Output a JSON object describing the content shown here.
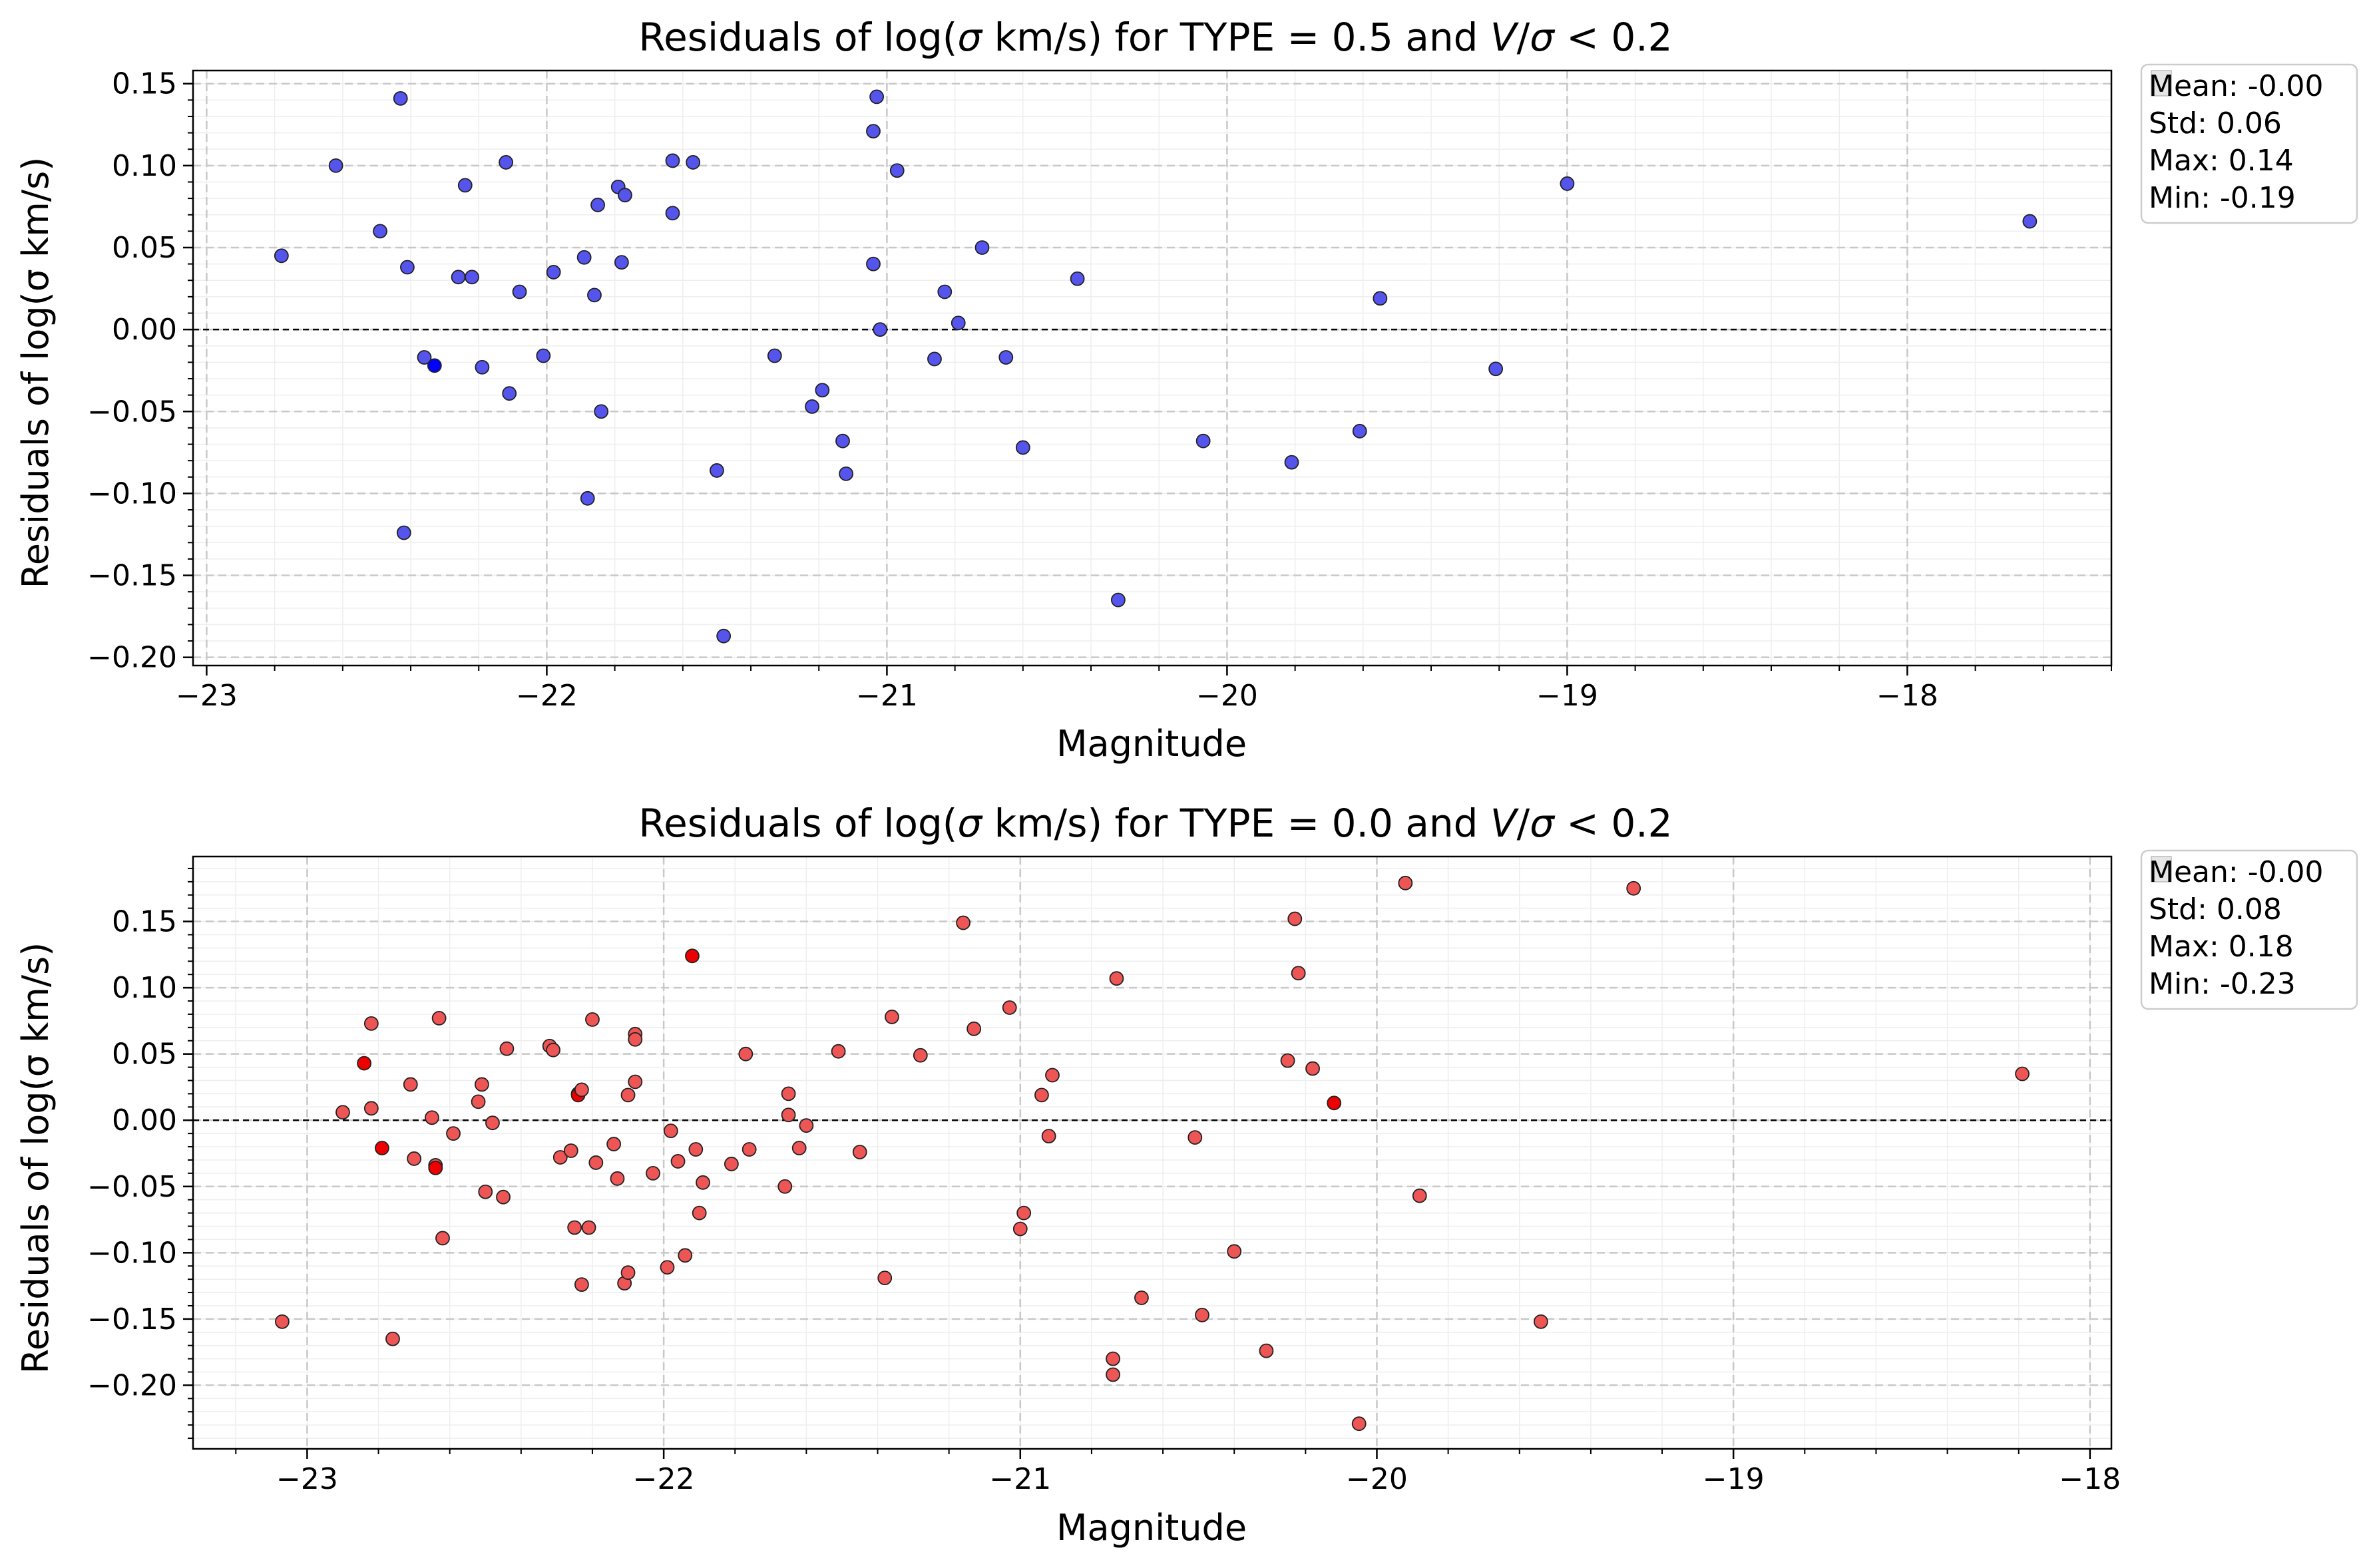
{
  "chart_data": [
    {
      "type": "scatter",
      "title": "Residuals of log(σ km/s) for TYPE = 0.5 and V/σ < 0.2",
      "title_parts": {
        "prefix": "Residuals of log(",
        "sigma": "σ",
        "unit": " km/s) for TYPE = 0.5 and ",
        "v": "V",
        "slash": "/",
        "sigma2": "σ",
        "cond": " < 0.2"
      },
      "xlabel": "Magnitude",
      "ylabel": "Residuals of log(σ km/s)",
      "xlim": [
        -23.04,
        -17.4
      ],
      "ylim": [
        -0.205,
        0.158
      ],
      "xticks": [
        -23,
        -22,
        -21,
        -20,
        -19,
        -18
      ],
      "yticks": [
        -0.2,
        -0.15,
        -0.1,
        -0.05,
        0.0,
        0.05,
        0.1,
        0.15
      ],
      "ytick_labels": [
        "−0.20",
        "−0.15",
        "−0.10",
        "−0.05",
        "0.00",
        "0.05",
        "0.10",
        "0.15"
      ],
      "xtick_labels": [
        "−23",
        "−22",
        "−21",
        "−20",
        "−19",
        "−18"
      ],
      "grid": true,
      "zero_line": true,
      "color": "#5555ee",
      "highlight_color": "#0000ff",
      "stats": [
        "Mean: -0.00",
        "Std: 0.06",
        "Max: 0.14",
        "Min: -0.19"
      ],
      "legend_position": "outside-top-right",
      "points": [
        {
          "x": -22.78,
          "y": 0.045
        },
        {
          "x": -22.62,
          "y": 0.1
        },
        {
          "x": -22.49,
          "y": 0.06
        },
        {
          "x": -22.43,
          "y": 0.141
        },
        {
          "x": -22.42,
          "y": -0.124
        },
        {
          "x": -22.41,
          "y": 0.038
        },
        {
          "x": -22.36,
          "y": -0.017
        },
        {
          "x": -22.33,
          "y": -0.022,
          "h": true
        },
        {
          "x": -22.26,
          "y": 0.032
        },
        {
          "x": -22.24,
          "y": 0.088
        },
        {
          "x": -22.22,
          "y": 0.032
        },
        {
          "x": -22.19,
          "y": -0.023
        },
        {
          "x": -22.12,
          "y": 0.102
        },
        {
          "x": -22.11,
          "y": -0.039
        },
        {
          "x": -22.08,
          "y": 0.023
        },
        {
          "x": -22.01,
          "y": -0.016
        },
        {
          "x": -21.98,
          "y": 0.035
        },
        {
          "x": -21.89,
          "y": 0.044
        },
        {
          "x": -21.88,
          "y": -0.103
        },
        {
          "x": -21.86,
          "y": 0.021
        },
        {
          "x": -21.85,
          "y": 0.076
        },
        {
          "x": -21.84,
          "y": -0.05
        },
        {
          "x": -21.79,
          "y": 0.087
        },
        {
          "x": -21.78,
          "y": 0.041
        },
        {
          "x": -21.77,
          "y": 0.082
        },
        {
          "x": -21.63,
          "y": 0.103
        },
        {
          "x": -21.63,
          "y": 0.071
        },
        {
          "x": -21.57,
          "y": 0.102
        },
        {
          "x": -21.5,
          "y": -0.086
        },
        {
          "x": -21.48,
          "y": -0.187
        },
        {
          "x": -21.33,
          "y": -0.016
        },
        {
          "x": -21.22,
          "y": -0.047
        },
        {
          "x": -21.19,
          "y": -0.037
        },
        {
          "x": -21.13,
          "y": -0.068
        },
        {
          "x": -21.12,
          "y": -0.088
        },
        {
          "x": -21.04,
          "y": 0.121
        },
        {
          "x": -21.04,
          "y": 0.04
        },
        {
          "x": -21.03,
          "y": 0.142
        },
        {
          "x": -21.02,
          "y": 0.0
        },
        {
          "x": -20.97,
          "y": 0.097
        },
        {
          "x": -20.86,
          "y": -0.018
        },
        {
          "x": -20.83,
          "y": 0.023
        },
        {
          "x": -20.79,
          "y": 0.004
        },
        {
          "x": -20.72,
          "y": 0.05
        },
        {
          "x": -20.65,
          "y": -0.017
        },
        {
          "x": -20.6,
          "y": -0.072
        },
        {
          "x": -20.44,
          "y": 0.031
        },
        {
          "x": -20.32,
          "y": -0.165
        },
        {
          "x": -20.07,
          "y": -0.068
        },
        {
          "x": -19.81,
          "y": -0.081
        },
        {
          "x": -19.61,
          "y": -0.062
        },
        {
          "x": -19.55,
          "y": 0.019
        },
        {
          "x": -19.21,
          "y": -0.024
        },
        {
          "x": -19.0,
          "y": 0.089
        },
        {
          "x": -17.64,
          "y": 0.066
        }
      ]
    },
    {
      "type": "scatter",
      "title": "Residuals of log(σ km/s) for TYPE = 0.0 and V/σ < 0.2",
      "title_parts": {
        "prefix": "Residuals of log(",
        "sigma": "σ",
        "unit": " km/s) for TYPE = 0.0 and ",
        "v": "V",
        "slash": "/",
        "sigma2": "σ",
        "cond": " < 0.2"
      },
      "xlabel": "Magnitude",
      "ylabel": "Residuals of log(σ km/s)",
      "xlim": [
        -23.32,
        -17.94
      ],
      "ylim": [
        -0.248,
        0.199
      ],
      "xticks": [
        -23,
        -22,
        -21,
        -20,
        -19,
        -18
      ],
      "yticks": [
        -0.2,
        -0.15,
        -0.1,
        -0.05,
        0.0,
        0.05,
        0.1,
        0.15
      ],
      "ytick_labels": [
        "−0.20",
        "−0.15",
        "−0.10",
        "−0.05",
        "0.00",
        "0.05",
        "0.10",
        "0.15"
      ],
      "xtick_labels": [
        "−23",
        "−22",
        "−21",
        "−20",
        "−19",
        "−18"
      ],
      "grid": true,
      "zero_line": true,
      "color": "#ee5555",
      "highlight_color": "#ee0000",
      "stats": [
        "Mean: -0.00",
        "Std: 0.08",
        "Max: 0.18",
        "Min: -0.23"
      ],
      "legend_position": "outside-top-right",
      "points": [
        {
          "x": -23.07,
          "y": -0.152
        },
        {
          "x": -22.9,
          "y": 0.006
        },
        {
          "x": -22.84,
          "y": 0.043,
          "h": true
        },
        {
          "x": -22.82,
          "y": 0.073
        },
        {
          "x": -22.82,
          "y": 0.009
        },
        {
          "x": -22.79,
          "y": -0.021,
          "h": true
        },
        {
          "x": -22.76,
          "y": -0.165
        },
        {
          "x": -22.71,
          "y": 0.027
        },
        {
          "x": -22.7,
          "y": -0.029
        },
        {
          "x": -22.65,
          "y": 0.002
        },
        {
          "x": -22.64,
          "y": -0.034
        },
        {
          "x": -22.64,
          "y": -0.036,
          "h": true
        },
        {
          "x": -22.63,
          "y": 0.077
        },
        {
          "x": -22.62,
          "y": -0.089
        },
        {
          "x": -22.59,
          "y": -0.01
        },
        {
          "x": -22.52,
          "y": 0.014
        },
        {
          "x": -22.51,
          "y": 0.027
        },
        {
          "x": -22.5,
          "y": -0.054
        },
        {
          "x": -22.48,
          "y": -0.002
        },
        {
          "x": -22.45,
          "y": -0.058
        },
        {
          "x": -22.44,
          "y": 0.054
        },
        {
          "x": -22.32,
          "y": 0.056
        },
        {
          "x": -22.31,
          "y": 0.053
        },
        {
          "x": -22.29,
          "y": -0.028
        },
        {
          "x": -22.26,
          "y": -0.023
        },
        {
          "x": -22.25,
          "y": -0.081
        },
        {
          "x": -22.24,
          "y": 0.02
        },
        {
          "x": -22.24,
          "y": 0.019,
          "h": true
        },
        {
          "x": -22.23,
          "y": -0.124
        },
        {
          "x": -22.23,
          "y": 0.023
        },
        {
          "x": -22.21,
          "y": -0.081
        },
        {
          "x": -22.2,
          "y": 0.076
        },
        {
          "x": -22.19,
          "y": -0.032
        },
        {
          "x": -22.14,
          "y": -0.018
        },
        {
          "x": -22.13,
          "y": -0.044
        },
        {
          "x": -22.11,
          "y": -0.123
        },
        {
          "x": -22.1,
          "y": -0.115
        },
        {
          "x": -22.1,
          "y": 0.019
        },
        {
          "x": -22.08,
          "y": 0.029
        },
        {
          "x": -22.08,
          "y": 0.065
        },
        {
          "x": -22.08,
          "y": 0.061
        },
        {
          "x": -22.03,
          "y": -0.04
        },
        {
          "x": -21.99,
          "y": -0.111
        },
        {
          "x": -21.98,
          "y": -0.008
        },
        {
          "x": -21.96,
          "y": -0.031
        },
        {
          "x": -21.94,
          "y": -0.102
        },
        {
          "x": -21.92,
          "y": 0.124,
          "h": true
        },
        {
          "x": -21.91,
          "y": -0.022
        },
        {
          "x": -21.9,
          "y": -0.07
        },
        {
          "x": -21.89,
          "y": -0.047
        },
        {
          "x": -21.81,
          "y": -0.033
        },
        {
          "x": -21.77,
          "y": 0.05
        },
        {
          "x": -21.76,
          "y": -0.022
        },
        {
          "x": -21.66,
          "y": -0.05
        },
        {
          "x": -21.65,
          "y": 0.02
        },
        {
          "x": -21.65,
          "y": 0.004
        },
        {
          "x": -21.62,
          "y": -0.021
        },
        {
          "x": -21.6,
          "y": -0.004
        },
        {
          "x": -21.51,
          "y": 0.052
        },
        {
          "x": -21.45,
          "y": -0.024
        },
        {
          "x": -21.38,
          "y": -0.119
        },
        {
          "x": -21.36,
          "y": 0.078
        },
        {
          "x": -21.28,
          "y": 0.049
        },
        {
          "x": -21.16,
          "y": 0.149
        },
        {
          "x": -21.13,
          "y": 0.069
        },
        {
          "x": -21.03,
          "y": 0.085
        },
        {
          "x": -21.0,
          "y": -0.082
        },
        {
          "x": -20.99,
          "y": -0.07
        },
        {
          "x": -20.94,
          "y": 0.019
        },
        {
          "x": -20.92,
          "y": -0.012
        },
        {
          "x": -20.91,
          "y": 0.034
        },
        {
          "x": -20.74,
          "y": -0.18
        },
        {
          "x": -20.74,
          "y": -0.192
        },
        {
          "x": -20.73,
          "y": 0.107
        },
        {
          "x": -20.66,
          "y": -0.134
        },
        {
          "x": -20.51,
          "y": -0.013
        },
        {
          "x": -20.49,
          "y": -0.147
        },
        {
          "x": -20.4,
          "y": -0.099
        },
        {
          "x": -20.31,
          "y": -0.174
        },
        {
          "x": -20.25,
          "y": 0.045
        },
        {
          "x": -20.23,
          "y": 0.152
        },
        {
          "x": -20.22,
          "y": 0.111
        },
        {
          "x": -20.18,
          "y": 0.039
        },
        {
          "x": -20.12,
          "y": 0.013,
          "h": true
        },
        {
          "x": -20.05,
          "y": -0.229
        },
        {
          "x": -19.92,
          "y": 0.179
        },
        {
          "x": -19.88,
          "y": -0.057
        },
        {
          "x": -19.54,
          "y": -0.152
        },
        {
          "x": -19.28,
          "y": 0.175
        },
        {
          "x": -18.19,
          "y": 0.035
        }
      ]
    }
  ]
}
